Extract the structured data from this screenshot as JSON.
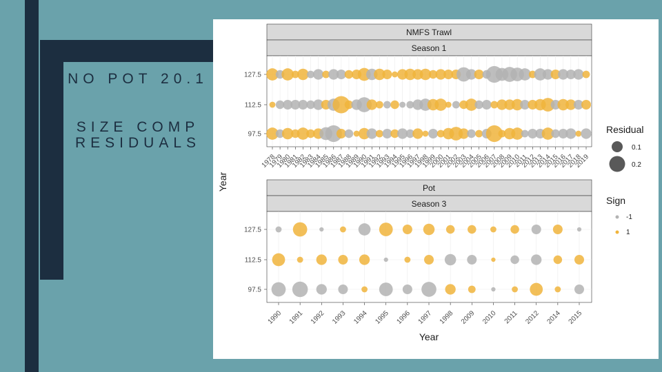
{
  "slide": {
    "title": "NO POT 20.1",
    "subtitle": "SIZE COMP RESIDUALS"
  },
  "colors": {
    "background": "#6aa2ab",
    "dark": "#1c2e40",
    "negative": "#b3b3b3",
    "positive": "#f0b43c",
    "strip": "#d9d9d9"
  },
  "chart_data": {
    "type": "scatter",
    "y_axis_title": "Year",
    "x_axis_title": "Year",
    "legend": {
      "residual_title": "Residual",
      "residual_sizes": [
        0.1,
        0.2
      ],
      "sign_title": "Sign",
      "sign_labels": [
        "-1",
        "1"
      ]
    },
    "panels": [
      {
        "strip_top": "NMFS Trawl",
        "strip_bottom": "Season 1",
        "y_ticks": [
          "127.5",
          "112.5",
          "97.5"
        ],
        "x_ticks": [
          "1978",
          "1979",
          "1980",
          "1981",
          "1982",
          "1983",
          "1984",
          "1985",
          "1986",
          "1987",
          "1988",
          "1989",
          "1990",
          "1991",
          "1992",
          "1993",
          "1994",
          "1995",
          "1996",
          "1997",
          "1998",
          "1999",
          "2000",
          "2001",
          "2002",
          "2003",
          "2004",
          "2005",
          "2006",
          "2007",
          "2008",
          "2009",
          "2010",
          "2011",
          "2012",
          "2013",
          "2014",
          "2015",
          "2016",
          "2017",
          "2018",
          "2019"
        ],
        "residuals": {
          "127.5": [
            0.08,
            -0.04,
            0.08,
            0.03,
            0.07,
            -0.03,
            -0.06,
            0.03,
            -0.06,
            -0.05,
            0.04,
            0.05,
            0.09,
            -0.07,
            0.07,
            0.05,
            0.02,
            0.06,
            0.07,
            0.06,
            0.07,
            0.04,
            0.06,
            0.05,
            0.05,
            -0.11,
            -0.06,
            0.05,
            -0.04,
            -0.15,
            -0.09,
            -0.12,
            -0.1,
            -0.08,
            0.03,
            -0.08,
            -0.06,
            0.05,
            -0.06,
            -0.05,
            -0.06,
            0.03
          ],
          "112.5": [
            0.02,
            -0.04,
            -0.05,
            -0.05,
            -0.05,
            -0.04,
            -0.06,
            0.05,
            -0.08,
            0.16,
            0.04,
            -0.06,
            -0.12,
            0.06,
            0.03,
            -0.03,
            0.04,
            -0.02,
            -0.03,
            -0.06,
            -0.08,
            0.07,
            0.08,
            0.02,
            -0.03,
            0.04,
            0.08,
            -0.04,
            -0.05,
            0.03,
            0.06,
            0.06,
            0.07,
            -0.05,
            0.05,
            0.07,
            0.1,
            -0.05,
            0.07,
            0.06,
            -0.05,
            0.05
          ],
          "97.5": [
            0.08,
            -0.04,
            0.07,
            0.04,
            0.08,
            0.04,
            0.06,
            -0.09,
            -0.15,
            0.05,
            -0.04,
            0.02,
            0.07,
            -0.06,
            0.03,
            -0.05,
            0.04,
            -0.06,
            -0.04,
            0.06,
            0.02,
            -0.05,
            0.03,
            0.07,
            0.1,
            0.06,
            -0.04,
            0.03,
            -0.05,
            0.15,
            0.03,
            0.07,
            0.08,
            -0.03,
            -0.05,
            -0.05,
            0.08,
            -0.04,
            -0.05,
            -0.06,
            0.02,
            -0.06
          ]
        }
      },
      {
        "strip_top": "Pot",
        "strip_bottom": "Season 3",
        "y_ticks": [
          "127.5",
          "112.5",
          "97.5"
        ],
        "x_ticks": [
          "1990",
          "1991",
          "1992",
          "1993",
          "1994",
          "1995",
          "1996",
          "1997",
          "1998",
          "2009",
          "2010",
          "2011",
          "2012",
          "2014",
          "2015"
        ],
        "residuals": {
          "127.5": [
            -0.02,
            0.11,
            -0.01,
            0.02,
            -0.08,
            0.1,
            0.05,
            0.07,
            0.04,
            0.04,
            0.02,
            0.04,
            -0.05,
            0.05,
            -0.01
          ],
          "112.5": [
            0.09,
            0.02,
            0.06,
            0.05,
            0.06,
            -0.01,
            0.02,
            0.05,
            -0.07,
            -0.05,
            0.01,
            -0.04,
            -0.06,
            0.04,
            0.05
          ],
          "97.5": [
            -0.11,
            -0.13,
            -0.06,
            -0.05,
            0.02,
            -0.1,
            -0.05,
            -0.12,
            0.06,
            0.03,
            -0.01,
            0.02,
            0.09,
            0.02,
            -0.05
          ]
        }
      }
    ]
  }
}
